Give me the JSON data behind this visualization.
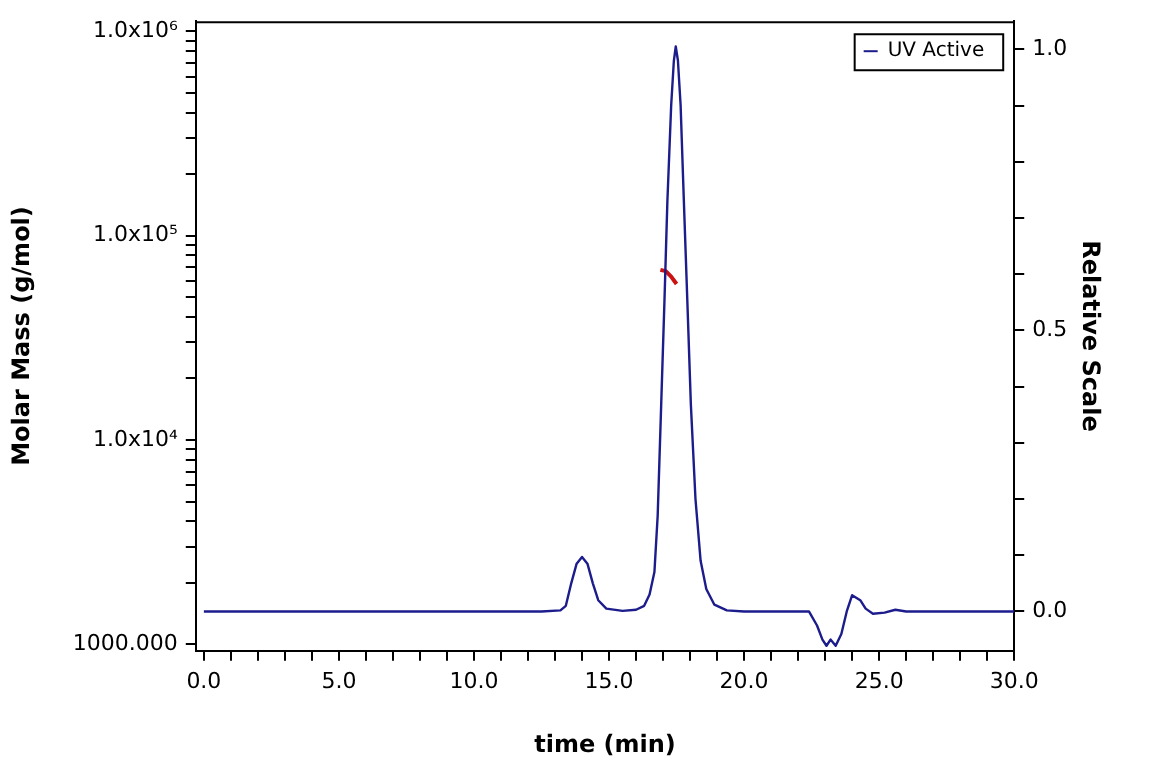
{
  "chart_data": {
    "type": "line",
    "xlabel": "time (min)",
    "ylabel": "Molar Mass (g/mol)",
    "y2label": "Relative Scale",
    "xlim": [
      -0.3,
      30
    ],
    "xticks": [
      {
        "value": 0,
        "label": "0.0"
      },
      {
        "value": 1,
        "label": null
      },
      {
        "value": 2,
        "label": null
      },
      {
        "value": 3,
        "label": null
      },
      {
        "value": 4,
        "label": null
      },
      {
        "value": 5,
        "label": "5.0"
      },
      {
        "value": 6,
        "label": null
      },
      {
        "value": 7,
        "label": null
      },
      {
        "value": 8,
        "label": null
      },
      {
        "value": 9,
        "label": null
      },
      {
        "value": 10,
        "label": "10.0"
      },
      {
        "value": 11,
        "label": null
      },
      {
        "value": 12,
        "label": null
      },
      {
        "value": 13,
        "label": null
      },
      {
        "value": 14,
        "label": null
      },
      {
        "value": 15,
        "label": "15.0"
      },
      {
        "value": 16,
        "label": null
      },
      {
        "value": 17,
        "label": null
      },
      {
        "value": 18,
        "label": null
      },
      {
        "value": 19,
        "label": null
      },
      {
        "value": 20,
        "label": "20.0"
      },
      {
        "value": 21,
        "label": null
      },
      {
        "value": 22,
        "label": null
      },
      {
        "value": 23,
        "label": null
      },
      {
        "value": 24,
        "label": null
      },
      {
        "value": 25,
        "label": "25.0"
      },
      {
        "value": 26,
        "label": null
      },
      {
        "value": 27,
        "label": null
      },
      {
        "value": 28,
        "label": null
      },
      {
        "value": 29,
        "label": null
      },
      {
        "value": 30,
        "label": "30.0"
      }
    ],
    "log": "y",
    "ylim": [
      930,
      1120000
    ],
    "yticks": [
      {
        "value": 1000,
        "label": "1000.000"
      },
      {
        "value": 2000,
        "label": null
      },
      {
        "value": 3000,
        "label": null
      },
      {
        "value": 4000,
        "label": null
      },
      {
        "value": 5000,
        "label": null
      },
      {
        "value": 6000,
        "label": null
      },
      {
        "value": 7000,
        "label": null
      },
      {
        "value": 8000,
        "label": null
      },
      {
        "value": 9000,
        "label": null
      },
      {
        "value": 10000,
        "label": "1.0x10⁴"
      },
      {
        "value": 20000,
        "label": null
      },
      {
        "value": 30000,
        "label": null
      },
      {
        "value": 40000,
        "label": null
      },
      {
        "value": 50000,
        "label": null
      },
      {
        "value": 60000,
        "label": null
      },
      {
        "value": 70000,
        "label": null
      },
      {
        "value": 80000,
        "label": null
      },
      {
        "value": 90000,
        "label": null
      },
      {
        "value": 100000,
        "label": "1.0x10⁵"
      },
      {
        "value": 200000,
        "label": null
      },
      {
        "value": 300000,
        "label": null
      },
      {
        "value": 400000,
        "label": null
      },
      {
        "value": 500000,
        "label": null
      },
      {
        "value": 600000,
        "label": null
      },
      {
        "value": 700000,
        "label": null
      },
      {
        "value": 800000,
        "label": null
      },
      {
        "value": 900000,
        "label": null
      },
      {
        "value": 1000000,
        "label": "1.0x10⁶"
      }
    ],
    "y2lim": [
      -0.07,
      1.05
    ],
    "y2ticks": [
      {
        "value": 0,
        "label": "0.0"
      },
      {
        "value": 0.1,
        "label": null
      },
      {
        "value": 0.2,
        "label": null
      },
      {
        "value": 0.3,
        "label": null
      },
      {
        "value": 0.4,
        "label": null
      },
      {
        "value": 0.5,
        "label": "0.5"
      },
      {
        "value": 0.6,
        "label": null
      },
      {
        "value": 0.7,
        "label": null
      },
      {
        "value": 0.8,
        "label": null
      },
      {
        "value": 0.9,
        "label": null
      },
      {
        "value": 1,
        "label": "1.0"
      }
    ],
    "legend": "top right",
    "marker": "none",
    "grid": false,
    "series": [
      {
        "name": "UV Active",
        "color": "#1c1c8c",
        "axis": "y2",
        "x": [
          0,
          5,
          10,
          12.5,
          13.2,
          13.4,
          13.6,
          13.8,
          14.0,
          14.2,
          14.4,
          14.6,
          14.9,
          15.5,
          16.0,
          16.3,
          16.5,
          16.68,
          16.8,
          16.93,
          17.05,
          17.16,
          17.3,
          17.4,
          17.47,
          17.55,
          17.65,
          17.77,
          17.9,
          18.03,
          18.2,
          18.39,
          18.6,
          18.9,
          19.36,
          20,
          22,
          22.4,
          22.7,
          22.9,
          23.05,
          23.2,
          23.39,
          23.6,
          23.8,
          24.0,
          24.3,
          24.5,
          24.77,
          25.2,
          25.6,
          26,
          28,
          30
        ],
        "values": [
          0,
          0,
          0,
          0,
          0.002,
          0.01,
          0.05,
          0.085,
          0.097,
          0.085,
          0.05,
          0.02,
          0.005,
          0.001,
          0.003,
          0.01,
          0.03,
          0.07,
          0.17,
          0.367,
          0.55,
          0.73,
          0.9,
          0.98,
          1.005,
          0.98,
          0.9,
          0.73,
          0.55,
          0.367,
          0.2,
          0.09,
          0.04,
          0.012,
          0.002,
          0,
          0,
          0,
          -0.025,
          -0.05,
          -0.061,
          -0.05,
          -0.061,
          -0.04,
          0,
          0.029,
          0.02,
          0.005,
          -0.004,
          -0.002,
          0.003,
          0,
          0,
          0
        ]
      },
      {
        "color": "#cc1111",
        "axis": "y",
        "x": [
          16.9,
          17.1,
          17.3,
          17.5
        ],
        "values": [
          68000,
          67000,
          63000,
          58000
        ]
      }
    ]
  }
}
